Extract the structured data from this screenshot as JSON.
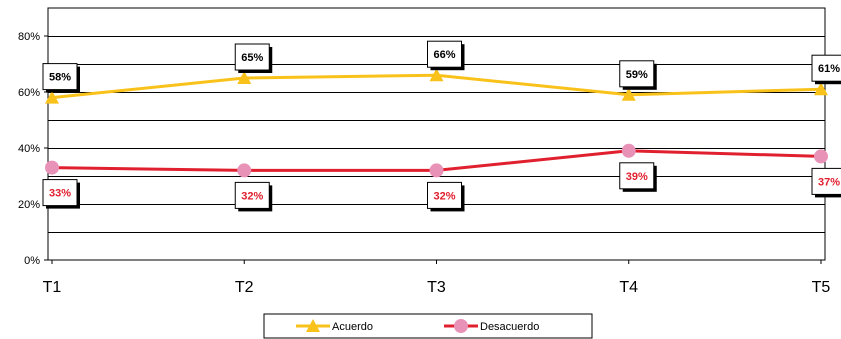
{
  "chart_data": {
    "type": "line",
    "categories": [
      "T1",
      "T2",
      "T3",
      "T4",
      "T5"
    ],
    "series": [
      {
        "name": "Acuerdo",
        "values": [
          58,
          65,
          66,
          59,
          61
        ],
        "labels": [
          "58%",
          "65%",
          "66%",
          "59%",
          "61%"
        ],
        "color": "#F9C21B",
        "marker": "triangle",
        "label_color": "#000000"
      },
      {
        "name": "Desacuerdo",
        "values": [
          33,
          32,
          32,
          39,
          37
        ],
        "labels": [
          "33%",
          "32%",
          "32%",
          "39%",
          "37%"
        ],
        "color": "#E0202E",
        "marker": "circle",
        "marker_color": "#E992B8",
        "label_color": "#E0202E"
      }
    ],
    "ylim": [
      0,
      90
    ],
    "yticks": [
      0,
      20,
      40,
      60,
      80
    ],
    "ytick_labels": [
      "0%",
      "20%",
      "40%",
      "60%",
      "80%"
    ],
    "grid": true,
    "legend_position": "bottom"
  }
}
